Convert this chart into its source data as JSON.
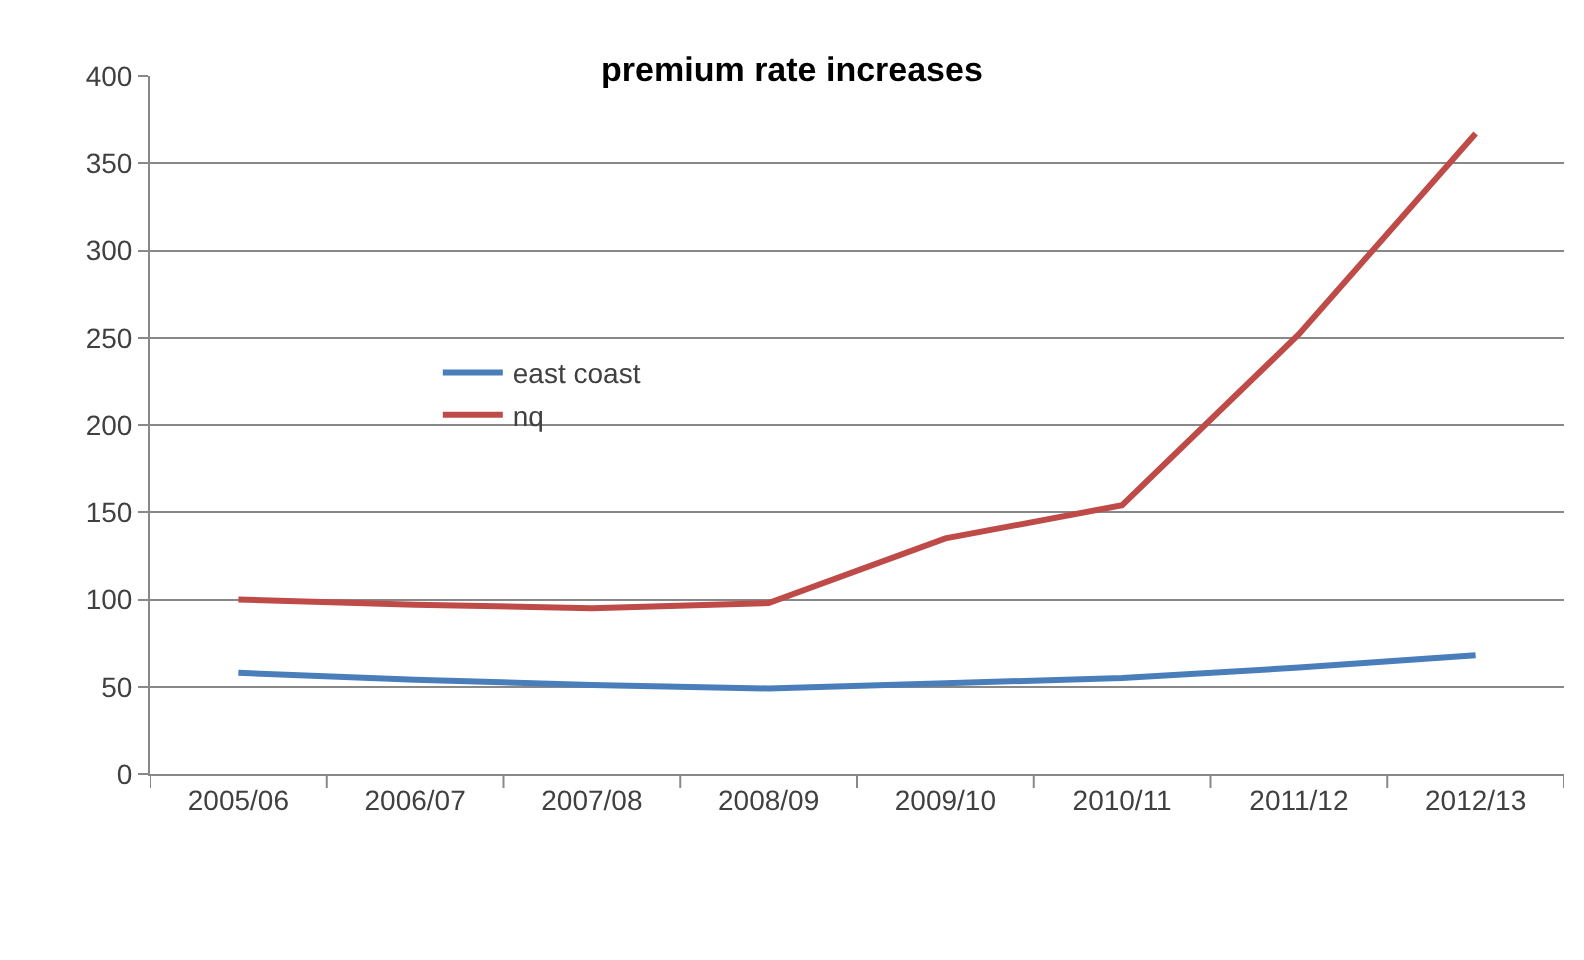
{
  "chart_data": {
    "type": "line",
    "title": "premium rate increases",
    "categories": [
      "2005/06",
      "2006/07",
      "2007/08",
      "2008/09",
      "2009/10",
      "2010/11",
      "2011/12",
      "2012/13"
    ],
    "series": [
      {
        "name": "east coast",
        "color": "#4a7ebb",
        "values": [
          58,
          54,
          51,
          49,
          52,
          55,
          61,
          68
        ]
      },
      {
        "name": "nq",
        "color": "#be4b48",
        "values": [
          100,
          97,
          95,
          98,
          135,
          154,
          252,
          367
        ]
      }
    ],
    "ylim": [
      0,
      400
    ],
    "yticks": [
      0,
      50,
      100,
      150,
      200,
      250,
      300,
      350,
      400
    ],
    "grid": "y",
    "legend": "left",
    "marker": "none",
    "line_style": "solid"
  }
}
